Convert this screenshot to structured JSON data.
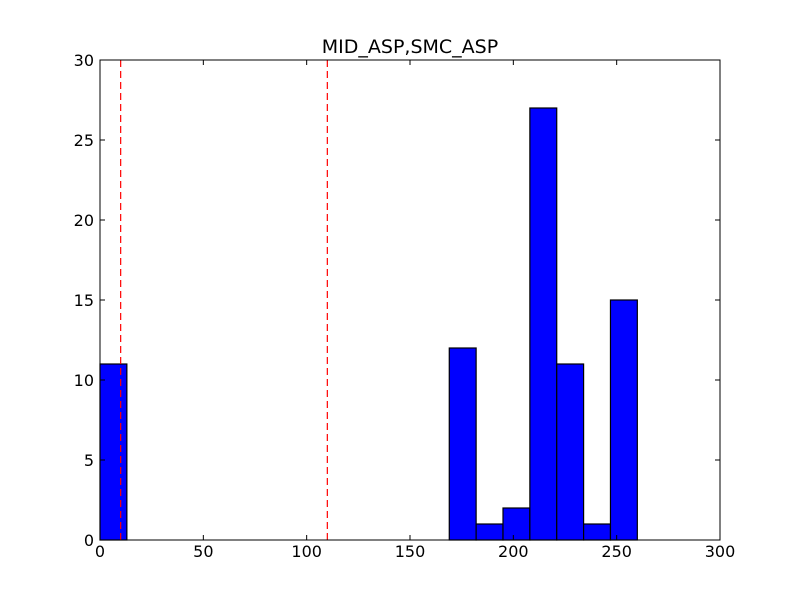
{
  "chart_data": {
    "type": "bar",
    "title": "MID_ASP,SMC_ASP",
    "xlabel": "",
    "ylabel": "",
    "xlim": [
      0,
      300
    ],
    "ylim": [
      0,
      30
    ],
    "x_ticks": [
      0,
      50,
      100,
      150,
      200,
      250,
      300
    ],
    "y_ticks": [
      0,
      5,
      10,
      15,
      20,
      25,
      30
    ],
    "grid": false,
    "bar_color": "#0000ff",
    "bar_edge_color": "#000000",
    "bins": [
      {
        "x0": 0,
        "x1": 13,
        "count": 11
      },
      {
        "x0": 169,
        "x1": 182,
        "count": 12
      },
      {
        "x0": 182,
        "x1": 195,
        "count": 1
      },
      {
        "x0": 195,
        "x1": 208,
        "count": 2
      },
      {
        "x0": 208,
        "x1": 221,
        "count": 27
      },
      {
        "x0": 221,
        "x1": 234,
        "count": 11
      },
      {
        "x0": 234,
        "x1": 247,
        "count": 1
      },
      {
        "x0": 247,
        "x1": 260,
        "count": 15
      }
    ],
    "reference_lines": [
      {
        "x": 10,
        "color": "#ff0000",
        "style": "dashed"
      },
      {
        "x": 110,
        "color": "#ff0000",
        "style": "dashed"
      }
    ]
  }
}
